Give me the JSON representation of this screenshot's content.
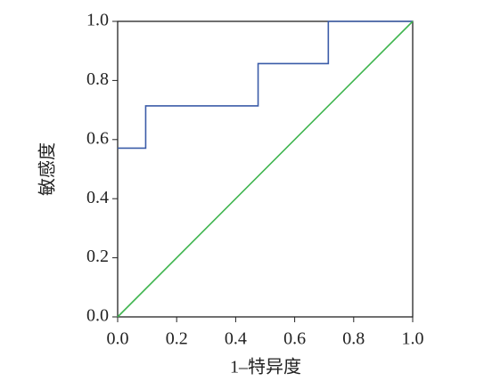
{
  "chart_data": {
    "type": "line",
    "xlabel": "1–特异度",
    "ylabel": "敏感度",
    "series": [
      {
        "color": "#3b5ca8",
        "x": [
          0,
          0.095,
          0.095,
          0.476,
          0.476,
          0.714,
          0.714,
          1.0
        ],
        "values": [
          0.571,
          0.571,
          0.714,
          0.714,
          0.857,
          0.857,
          1.0,
          1.0
        ]
      },
      {
        "color": "#3fb54f",
        "x": [
          0,
          1
        ],
        "values": [
          0,
          1
        ]
      }
    ],
    "xlim": [
      0,
      1
    ],
    "ylim": [
      0,
      1
    ],
    "xticks": [
      {
        "value": 0,
        "label": "0.0"
      },
      {
        "value": 0.2,
        "label": "0.2"
      },
      {
        "value": 0.4,
        "label": "0.4"
      },
      {
        "value": 0.6,
        "label": "0.6"
      },
      {
        "value": 0.8,
        "label": "0.8"
      },
      {
        "value": 1,
        "label": "1.0"
      }
    ],
    "yticks": [
      {
        "value": 0,
        "label": "0.0"
      },
      {
        "value": 0.2,
        "label": "0.2"
      },
      {
        "value": 0.4,
        "label": "0.4"
      },
      {
        "value": 0.6,
        "label": "0.6"
      },
      {
        "value": 0.8,
        "label": "0.8"
      },
      {
        "value": 1,
        "label": "1.0"
      }
    ],
    "grid": false
  }
}
